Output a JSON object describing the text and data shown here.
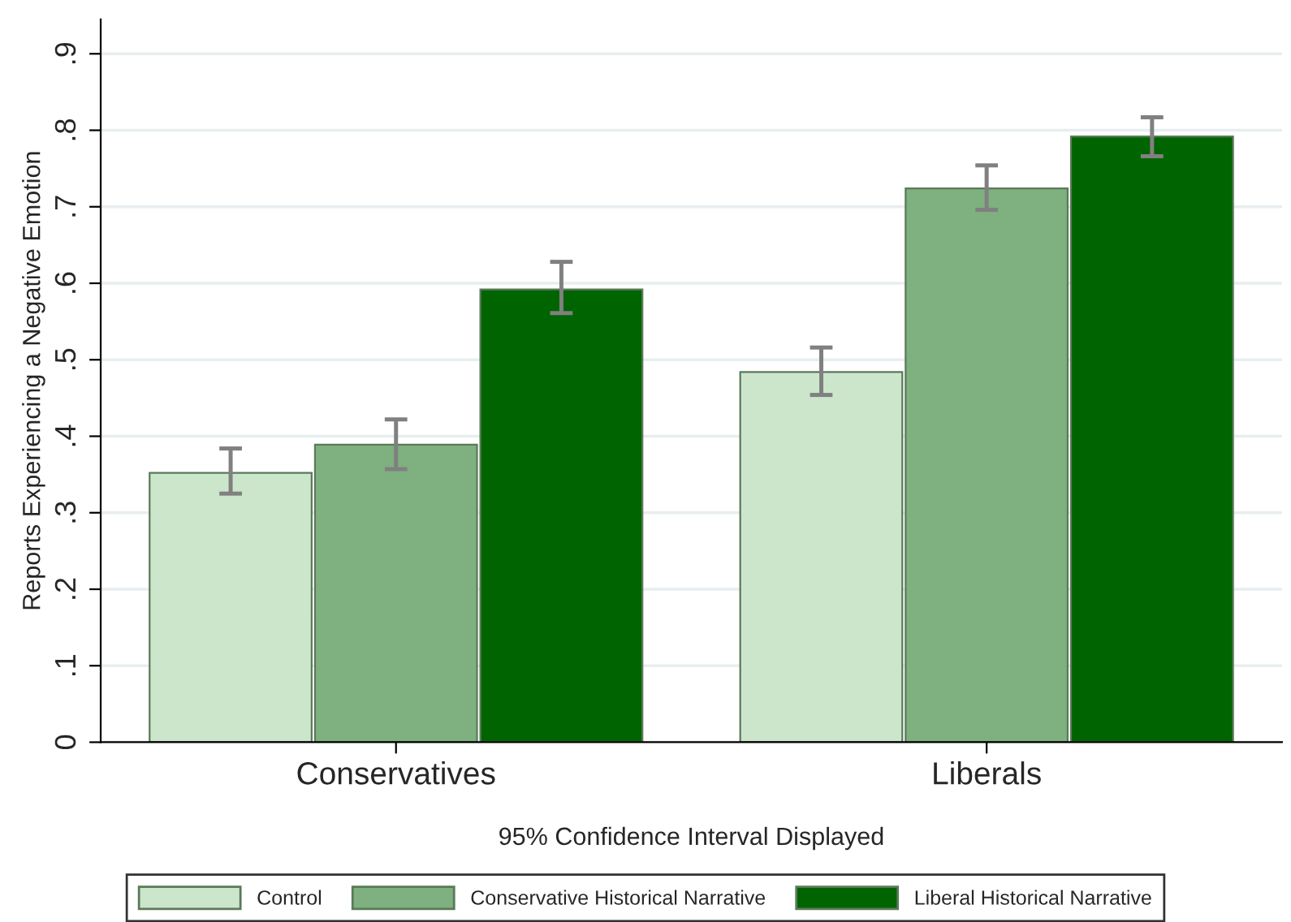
{
  "chart_data": {
    "type": "bar",
    "ylabel": "Reports Experiencing a Negative Emotion",
    "xlabel": "95% Confidence Interval Displayed",
    "categories": [
      "Conservatives",
      "Liberals"
    ],
    "series": [
      {
        "name": "Control",
        "color": "#cce6cc",
        "values": [
          0.352,
          0.484
        ],
        "errors": [
          [
            0.325,
            0.384
          ],
          [
            0.454,
            0.516
          ]
        ]
      },
      {
        "name": "Conservative Historical Narrative",
        "color": "#7fb07f",
        "values": [
          0.389,
          0.724
        ],
        "errors": [
          [
            0.357,
            0.422
          ],
          [
            0.696,
            0.754
          ]
        ]
      },
      {
        "name": "Liberal Historical Narrative",
        "color": "#006400",
        "values": [
          0.592,
          0.792
        ],
        "errors": [
          [
            0.561,
            0.628
          ],
          [
            0.766,
            0.817
          ]
        ]
      }
    ],
    "ylim": [
      0,
      0.945
    ],
    "yticks": [
      0,
      {
        "value": 0.1,
        "label": ".1"
      },
      {
        "value": 0.2,
        "label": ".2"
      },
      {
        "value": 0.3,
        "label": ".3"
      },
      {
        "value": 0.4,
        "label": ".4"
      },
      {
        "value": 0.5,
        "label": ".5"
      },
      {
        "value": 0.6,
        "label": ".6"
      },
      {
        "value": 0.7,
        "label": ".7"
      },
      {
        "value": 0.8,
        "label": ".8"
      },
      {
        "value": 0.9,
        "label": ".9"
      }
    ],
    "grid": "y",
    "legend": "bottom"
  }
}
